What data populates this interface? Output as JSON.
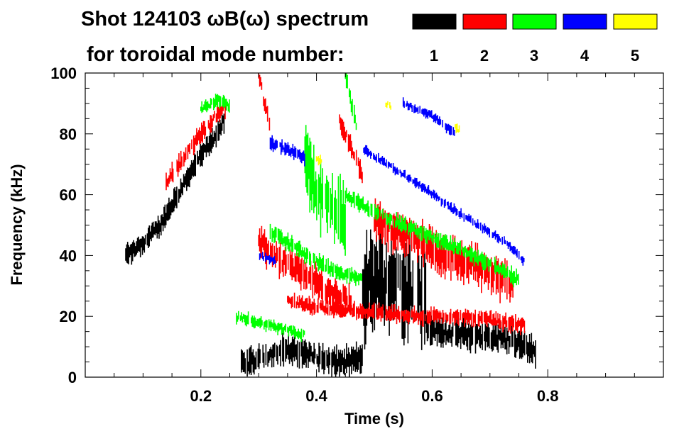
{
  "chart_data": {
    "type": "heatmap",
    "title_line1": "Shot 124103 ωB(ω) spectrum",
    "title_line2": "for toroidal mode number:",
    "xlabel": "Time (s)",
    "ylabel": "Frequency (kHz)",
    "xlim": [
      0.0,
      1.0
    ],
    "ylim": [
      0,
      100
    ],
    "xticks": [
      {
        "value": 0.2,
        "label": "0.2"
      },
      {
        "value": 0.4,
        "label": "0.4"
      },
      {
        "value": 0.6,
        "label": "0.6"
      },
      {
        "value": 0.8,
        "label": "0.8"
      }
    ],
    "yticks": [
      {
        "value": 0,
        "label": "0"
      },
      {
        "value": 20,
        "label": "20"
      },
      {
        "value": 40,
        "label": "40"
      },
      {
        "value": 60,
        "label": "60"
      },
      {
        "value": 80,
        "label": "80"
      },
      {
        "value": 100,
        "label": "100"
      }
    ],
    "legend": [
      {
        "n": "1",
        "color": "#000000"
      },
      {
        "n": "2",
        "color": "#ff0000"
      },
      {
        "n": "3",
        "color": "#00ff00"
      },
      {
        "n": "4",
        "color": "#0000ff"
      },
      {
        "n": "5",
        "color": "#ffff00"
      }
    ],
    "modes": [
      {
        "n": 1,
        "color": "#000000",
        "features": [
          {
            "t": [
              0.07,
              0.1,
              0.13,
              0.16,
              0.19,
              0.22,
              0.24
            ],
            "f": [
              40,
              44,
              50,
              60,
              70,
              78,
              84
            ],
            "w": 7
          },
          {
            "t": [
              0.27,
              0.3,
              0.34,
              0.38,
              0.42,
              0.46,
              0.48
            ],
            "f": [
              4,
              6,
              9,
              8,
              5,
              5,
              7
            ],
            "w": 9
          },
          {
            "t": [
              0.48,
              0.51,
              0.55,
              0.59
            ],
            "f": [
              29,
              33,
              30,
              26
            ],
            "w": 30
          },
          {
            "t": [
              0.59,
              0.62,
              0.66,
              0.7,
              0.74,
              0.78
            ],
            "f": [
              16,
              15,
              14,
              13,
              12,
              8
            ],
            "w": 9
          }
        ]
      },
      {
        "n": 2,
        "color": "#ff0000",
        "features": [
          {
            "t": [
              0.14,
              0.17,
              0.2,
              0.23,
              0.245
            ],
            "f": [
              64,
              72,
              80,
              87,
              89
            ],
            "w": 6
          },
          {
            "t": [
              0.3,
              0.34,
              0.38,
              0.42,
              0.46
            ],
            "f": [
              44,
              38,
              34,
              28,
              25
            ],
            "w": 10
          },
          {
            "t": [
              0.35,
              0.4,
              0.46,
              0.52,
              0.58,
              0.64,
              0.7,
              0.76
            ],
            "f": [
              25,
              23,
              22,
              21,
              20,
              20,
              19,
              17
            ],
            "w": 5
          },
          {
            "t": [
              0.44,
              0.46,
              0.48
            ],
            "f": [
              84,
              76,
              66
            ],
            "w": 6
          },
          {
            "t": [
              0.5,
              0.54,
              0.58,
              0.62,
              0.66,
              0.7,
              0.74
            ],
            "f": [
              52,
              48,
              44,
              40,
              38,
              34,
              30
            ],
            "w": 12
          },
          {
            "t": [
              0.3,
              0.31,
              0.32
            ],
            "f": [
              100,
              90,
              82
            ],
            "w": 5
          }
        ]
      },
      {
        "n": 3,
        "color": "#00ff00",
        "features": [
          {
            "t": [
              0.2,
              0.23,
              0.25
            ],
            "f": [
              88,
              91,
              89
            ],
            "w": 4
          },
          {
            "t": [
              0.38,
              0.4,
              0.43,
              0.45
            ],
            "f": [
              72,
              62,
              55,
              50
            ],
            "w": 24
          },
          {
            "t": [
              0.45,
              0.46,
              0.47
            ],
            "f": [
              100,
              90,
              82
            ],
            "w": 6
          },
          {
            "t": [
              0.45,
              0.5,
              0.55,
              0.6,
              0.65,
              0.7,
              0.75
            ],
            "f": [
              60,
              54,
              50,
              46,
              42,
              37,
              32
            ],
            "w": 5
          },
          {
            "t": [
              0.32,
              0.36,
              0.4,
              0.44,
              0.48
            ],
            "f": [
              48,
              43,
              38,
              34,
              32
            ],
            "w": 5
          },
          {
            "t": [
              0.26,
              0.3,
              0.34,
              0.38
            ],
            "f": [
              20,
              18,
              16,
              14
            ],
            "w": 4
          }
        ]
      },
      {
        "n": 4,
        "color": "#0000ff",
        "features": [
          {
            "t": [
              0.32,
              0.35,
              0.38
            ],
            "f": [
              77,
              75,
              72
            ],
            "w": 4
          },
          {
            "t": [
              0.48,
              0.53,
              0.58,
              0.63,
              0.68,
              0.73,
              0.76
            ],
            "f": [
              75,
              69,
              63,
              56,
              50,
              44,
              38
            ],
            "w": 3
          },
          {
            "t": [
              0.55,
              0.6,
              0.64
            ],
            "f": [
              90,
              86,
              80
            ],
            "w": 3
          },
          {
            "t": [
              0.3,
              0.33
            ],
            "f": [
              40,
              38
            ],
            "w": 3
          }
        ]
      },
      {
        "n": 5,
        "color": "#ffff00",
        "features": [
          {
            "t": [
              0.52,
              0.53
            ],
            "f": [
              90,
              89
            ],
            "w": 3
          },
          {
            "t": [
              0.64,
              0.65
            ],
            "f": [
              82,
              81
            ],
            "w": 3
          },
          {
            "t": [
              0.4,
              0.41
            ],
            "f": [
              72,
              71
            ],
            "w": 3
          }
        ]
      }
    ]
  }
}
